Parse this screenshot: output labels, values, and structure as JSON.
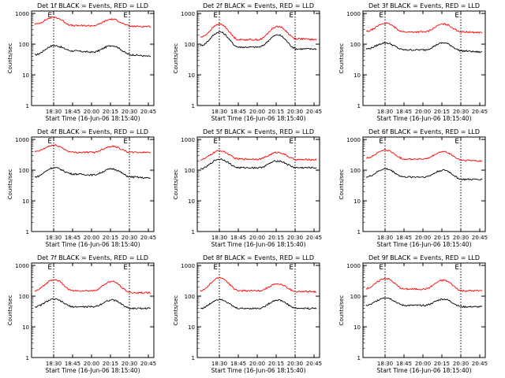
{
  "colors": {
    "events": "#000000",
    "lld": "#ff0000",
    "axis": "#000000",
    "background": "#ffffff"
  },
  "shared": {
    "ylabel": "Counts/sec",
    "xlabel": "Start Time (16-Jun-06 18:15:40)",
    "x_ticks": [
      "18:30",
      "18:45",
      "20:00",
      "20:15",
      "20:30",
      "20:45"
    ],
    "y_ticks": [
      "1",
      "10",
      "100",
      "1000"
    ],
    "y_scale": "log",
    "ylim": [
      1,
      1200
    ],
    "marker_lines": [
      "18:30",
      "20:30"
    ],
    "corner_glyph": "E"
  },
  "chart_data": [
    {
      "type": "line",
      "title": "Det 1f BLACK = Events, RED = LLD",
      "series": [
        {
          "name": "Events",
          "color": "#000000",
          "values": [
            45,
            90,
            60,
            55,
            90,
            45,
            40
          ]
        },
        {
          "name": "LLD",
          "color": "#ff0000",
          "values": [
            450,
            750,
            400,
            400,
            650,
            380,
            380
          ]
        }
      ]
    },
    {
      "type": "line",
      "title": "Det 2f BLACK = Events, RED = LLD",
      "series": [
        {
          "name": "Events",
          "color": "#000000",
          "values": [
            90,
            250,
            80,
            80,
            200,
            70,
            70
          ]
        },
        {
          "name": "LLD",
          "color": "#ff0000",
          "values": [
            170,
            450,
            140,
            140,
            380,
            150,
            140
          ]
        }
      ]
    },
    {
      "type": "line",
      "title": "Det 3f BLACK = Events, RED = LLD",
      "series": [
        {
          "name": "Events",
          "color": "#000000",
          "values": [
            70,
            110,
            65,
            65,
            110,
            60,
            55
          ]
        },
        {
          "name": "LLD",
          "color": "#ff0000",
          "values": [
            260,
            480,
            250,
            250,
            450,
            250,
            240
          ]
        }
      ]
    },
    {
      "type": "line",
      "title": "Det 4f BLACK = Events, RED = LLD",
      "series": [
        {
          "name": "Events",
          "color": "#000000",
          "values": [
            60,
            120,
            75,
            70,
            110,
            60,
            55
          ]
        },
        {
          "name": "LLD",
          "color": "#ff0000",
          "values": [
            400,
            650,
            380,
            380,
            600,
            380,
            380
          ]
        }
      ]
    },
    {
      "type": "line",
      "title": "Det 5f BLACK = Events, RED = LLD",
      "series": [
        {
          "name": "Events",
          "color": "#000000",
          "values": [
            110,
            230,
            120,
            120,
            200,
            120,
            120
          ]
        },
        {
          "name": "LLD",
          "color": "#ff0000",
          "values": [
            220,
            430,
            230,
            230,
            380,
            220,
            220
          ]
        }
      ]
    },
    {
      "type": "line",
      "title": "Det 6f BLACK = Events, RED = LLD",
      "series": [
        {
          "name": "Events",
          "color": "#000000",
          "values": [
            60,
            110,
            60,
            60,
            100,
            50,
            50
          ]
        },
        {
          "name": "LLD",
          "color": "#ff0000",
          "values": [
            250,
            450,
            230,
            230,
            400,
            210,
            200
          ]
        }
      ]
    },
    {
      "type": "line",
      "title": "Det 7f BLACK = Events, RED = LLD",
      "series": [
        {
          "name": "Events",
          "color": "#000000",
          "values": [
            45,
            80,
            45,
            45,
            75,
            40,
            40
          ]
        },
        {
          "name": "LLD",
          "color": "#ff0000",
          "values": [
            150,
            350,
            150,
            150,
            300,
            130,
            130
          ]
        }
      ]
    },
    {
      "type": "line",
      "title": "Det 8f BLACK = Events, RED = LLD",
      "series": [
        {
          "name": "Events",
          "color": "#000000",
          "values": [
            40,
            80,
            40,
            40,
            75,
            40,
            40
          ]
        },
        {
          "name": "LLD",
          "color": "#ff0000",
          "values": [
            150,
            400,
            150,
            150,
            250,
            140,
            140
          ]
        }
      ]
    },
    {
      "type": "line",
      "title": "Det 9f BLACK = Events, RED = LLD",
      "series": [
        {
          "name": "Events",
          "color": "#000000",
          "values": [
            50,
            90,
            50,
            50,
            80,
            45,
            45
          ]
        },
        {
          "name": "LLD",
          "color": "#ff0000",
          "values": [
            180,
            380,
            170,
            170,
            330,
            150,
            150
          ]
        }
      ]
    }
  ]
}
